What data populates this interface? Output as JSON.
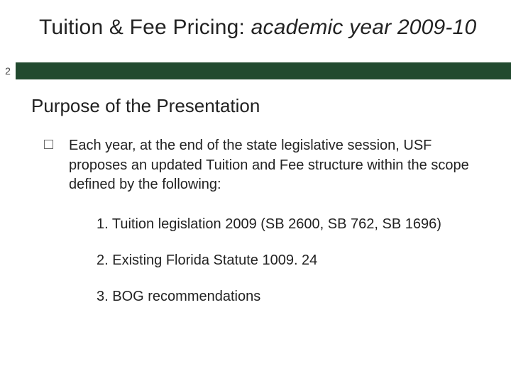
{
  "colors": {
    "bar_bg": "#224a2f",
    "text": "#222222",
    "bullet_border": "#6b6b6b",
    "page_bg": "#ffffff"
  },
  "title": {
    "prefix": "Tuition & Fee Pricing: ",
    "italic": "academic year 2009-10",
    "fontsize": 30
  },
  "page_number": "2",
  "subheading": {
    "text": "Purpose of the Presentation",
    "fontsize": 26
  },
  "body": {
    "bullet": "Each year, at the end of the state legislative session, USF proposes an updated Tuition and Fee structure within the scope defined by the following:",
    "fontsize": 20,
    "numbered": [
      "1. Tuition legislation 2009  (SB 2600, SB 762, SB 1696)",
      "2.  Existing Florida Statute 1009. 24",
      "3.  BOG recommendations"
    ]
  }
}
